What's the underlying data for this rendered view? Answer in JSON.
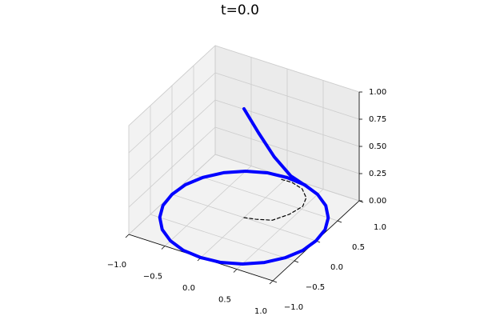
{
  "chart_data": {
    "type": "line3d",
    "title": "t=0.0",
    "xlim": [
      -1,
      1
    ],
    "ylim": [
      -1,
      1
    ],
    "zlim": [
      0,
      1
    ],
    "xticks": [
      {
        "value": -1,
        "label": "−1.0"
      },
      {
        "value": -0.5,
        "label": "−0.5"
      },
      {
        "value": 0,
        "label": "0.0"
      },
      0.5,
      {
        "value": 1,
        "label": "1.0"
      }
    ],
    "yticks": [
      {
        "value": -1,
        "label": "−1.0"
      },
      {
        "value": -0.5,
        "label": "−0.5"
      },
      {
        "value": 0,
        "label": "0.0"
      },
      0.5,
      {
        "value": 1,
        "label": "1.0"
      }
    ],
    "zticks": [
      {
        "value": 0,
        "label": "0.00"
      },
      0.25,
      {
        "value": 0.5,
        "label": "0.50"
      },
      0.75,
      {
        "value": 1,
        "label": "1.00"
      }
    ],
    "grid": true,
    "series": [
      {
        "color": "#0000ff",
        "linestyle": "solid",
        "x": [
          1,
          0.97,
          0.87,
          0.71,
          0.5,
          0.26,
          0,
          -0.26,
          -0.5,
          -0.71,
          -0.87,
          -0.97,
          -1,
          -0.97,
          -0.87,
          -0.71,
          -0.5,
          -0.26,
          0,
          0.26,
          0.5,
          0.71,
          0.87,
          0.97,
          1
        ],
        "y": [
          0,
          0.26,
          0.5,
          0.71,
          0.87,
          0.97,
          1,
          0.97,
          0.87,
          0.71,
          0.5,
          0.26,
          0,
          -0.26,
          -0.5,
          -0.71,
          -0.87,
          -0.97,
          -1,
          -0.97,
          -0.87,
          -0.71,
          -0.5,
          -0.26,
          0
        ],
        "z": [
          0,
          0,
          0,
          0,
          0,
          0,
          0,
          0,
          0,
          0,
          0,
          0,
          0,
          0,
          0,
          0,
          0,
          0,
          0,
          0,
          0,
          0,
          0,
          0,
          0
        ]
      },
      {
        "color": "#0000ff",
        "linestyle": "solid",
        "x": [
          0.28,
          0.2,
          0.12,
          0.05,
          0
        ],
        "y": [
          0.96,
          0.75,
          0.5,
          0.25,
          0
        ],
        "z": [
          0,
          0.15,
          0.4,
          0.7,
          1
        ]
      },
      {
        "color": "#000000",
        "linestyle": "dashed",
        "x": [
          0,
          0.14,
          0.32,
          0.43,
          0.48,
          0.42,
          0.28,
          0.1,
          -0.06
        ],
        "y": [
          0,
          0.04,
          0.12,
          0.33,
          0.56,
          0.74,
          0.88,
          0.94,
          0.93
        ],
        "z": [
          0,
          0,
          0,
          0,
          0,
          0,
          0,
          0,
          0
        ]
      }
    ]
  }
}
